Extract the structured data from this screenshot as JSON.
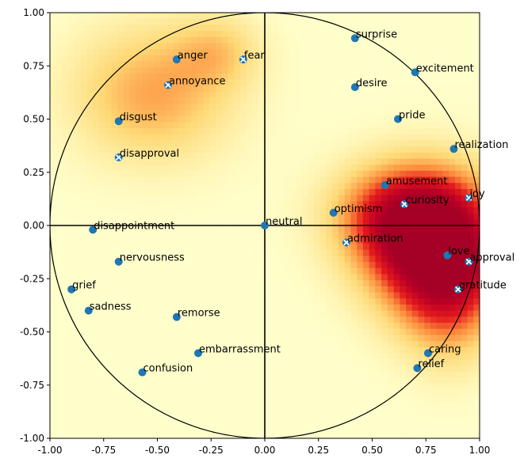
{
  "chart_data": {
    "type": "scatter",
    "title": "",
    "xlabel": "",
    "ylabel": "",
    "xlim": [
      -1.0,
      1.0
    ],
    "ylim": [
      -1.0,
      1.0
    ],
    "grid": false,
    "legend": "none",
    "x_ticks": [
      "-1.00",
      "-0.75",
      "-0.50",
      "-0.25",
      "0.00",
      "0.25",
      "0.50",
      "0.75",
      "1.00"
    ],
    "x_tick_values": [
      -1.0,
      -0.75,
      -0.5,
      -0.25,
      0.0,
      0.25,
      0.5,
      0.75,
      1.0
    ],
    "y_ticks": [
      "1.00",
      "0.75",
      "0.50",
      "0.25",
      "0.00",
      "-0.25",
      "-0.50",
      "-0.75",
      "-1.00"
    ],
    "y_tick_values": [
      1.0,
      0.75,
      0.5,
      0.25,
      0.0,
      -0.25,
      -0.5,
      -0.75,
      -1.0
    ],
    "unit_circle": true,
    "colors": {
      "point": "#1f77b4",
      "cross": "#ffffff",
      "heat_low": "#ffffcc",
      "heat_mid": "#fd8d3c",
      "heat_high": "#a50026"
    },
    "points": [
      {
        "label": "surprise",
        "x": 0.42,
        "y": 0.88,
        "highlight": false
      },
      {
        "label": "excitement",
        "x": 0.7,
        "y": 0.72,
        "highlight": false
      },
      {
        "label": "anger",
        "x": -0.41,
        "y": 0.78,
        "highlight": false
      },
      {
        "label": "fear",
        "x": -0.1,
        "y": 0.78,
        "highlight": true
      },
      {
        "label": "annoyance",
        "x": -0.45,
        "y": 0.66,
        "highlight": true
      },
      {
        "label": "desire",
        "x": 0.42,
        "y": 0.65,
        "highlight": false
      },
      {
        "label": "pride",
        "x": 0.62,
        "y": 0.5,
        "highlight": false
      },
      {
        "label": "disgust",
        "x": -0.68,
        "y": 0.49,
        "highlight": false
      },
      {
        "label": "realization",
        "x": 0.88,
        "y": 0.36,
        "highlight": false
      },
      {
        "label": "disapproval",
        "x": -0.68,
        "y": 0.32,
        "highlight": true
      },
      {
        "label": "amusement",
        "x": 0.56,
        "y": 0.19,
        "highlight": false
      },
      {
        "label": "joy",
        "x": 0.95,
        "y": 0.13,
        "highlight": true
      },
      {
        "label": "curiosity",
        "x": 0.65,
        "y": 0.1,
        "highlight": true
      },
      {
        "label": "optimism",
        "x": 0.32,
        "y": 0.06,
        "highlight": false
      },
      {
        "label": "neutral",
        "x": 0.0,
        "y": 0.0,
        "highlight": false
      },
      {
        "label": "disappointment",
        "x": -0.8,
        "y": -0.02,
        "highlight": false
      },
      {
        "label": "admiration",
        "x": 0.38,
        "y": -0.08,
        "highlight": true
      },
      {
        "label": "love",
        "x": 0.85,
        "y": -0.14,
        "highlight": false
      },
      {
        "label": "approval",
        "x": 0.95,
        "y": -0.17,
        "highlight": true
      },
      {
        "label": "nervousness",
        "x": -0.68,
        "y": -0.17,
        "highlight": false
      },
      {
        "label": "gratitude",
        "x": 0.9,
        "y": -0.3,
        "highlight": true
      },
      {
        "label": "grief",
        "x": -0.9,
        "y": -0.3,
        "highlight": false
      },
      {
        "label": "sadness",
        "x": -0.82,
        "y": -0.4,
        "highlight": false
      },
      {
        "label": "remorse",
        "x": -0.41,
        "y": -0.43,
        "highlight": false
      },
      {
        "label": "embarrassment",
        "x": -0.31,
        "y": -0.6,
        "highlight": false
      },
      {
        "label": "caring",
        "x": 0.76,
        "y": -0.6,
        "highlight": false
      },
      {
        "label": "relief",
        "x": 0.71,
        "y": -0.67,
        "highlight": false
      },
      {
        "label": "confusion",
        "x": -0.57,
        "y": -0.69,
        "highlight": false
      }
    ],
    "heat_centers": [
      {
        "x": 0.78,
        "y": -0.08,
        "weight": 1.0,
        "sx": 0.22,
        "sy": 0.22
      },
      {
        "x": 0.62,
        "y": 0.06,
        "weight": 0.45,
        "sx": 0.22,
        "sy": 0.16
      },
      {
        "x": 0.86,
        "y": -0.32,
        "weight": 0.45,
        "sx": 0.16,
        "sy": 0.22
      },
      {
        "x": -0.52,
        "y": 0.62,
        "weight": 0.38,
        "sx": 0.26,
        "sy": 0.22
      },
      {
        "x": -0.22,
        "y": 0.82,
        "weight": 0.22,
        "sx": 0.14,
        "sy": 0.12
      }
    ]
  }
}
